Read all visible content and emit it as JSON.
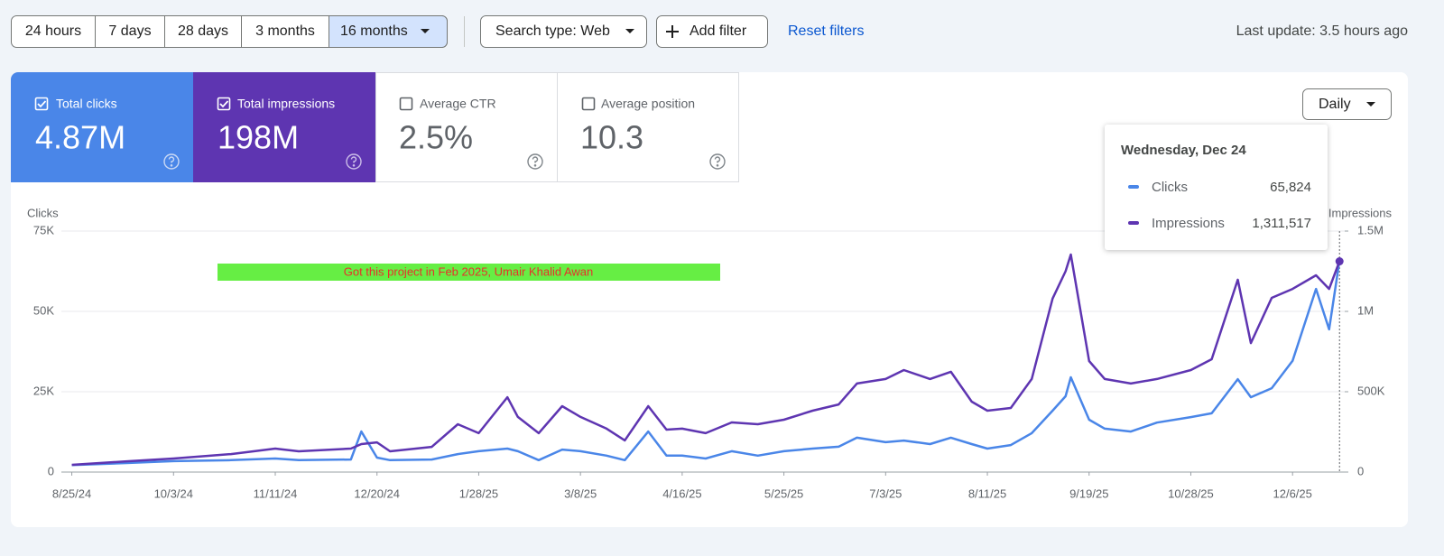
{
  "toolbar": {
    "ranges": [
      "24 hours",
      "7 days",
      "28 days",
      "3 months",
      "16 months"
    ],
    "search_type": "Search type: Web",
    "add_filter": "Add filter",
    "reset": "Reset filters",
    "last_update": "Last update: 3.5 hours ago"
  },
  "metrics": [
    {
      "label": "Total clicks",
      "value": "4.87M"
    },
    {
      "label": "Total impressions",
      "value": "198M"
    },
    {
      "label": "Average CTR",
      "value": "2.5%"
    },
    {
      "label": "Average position",
      "value": "10.3"
    }
  ],
  "granularity": "Daily",
  "tooltip": {
    "title": "Wednesday, Dec 24",
    "values": [
      "65,824",
      "1,311,517"
    ]
  },
  "chart_data": {
    "type": "line",
    "ylabel": "Clicks",
    "y2label": "Impressions",
    "annotation": "Got this project in Feb 2025, Umair Khalid Awan",
    "grid": true,
    "xlim": [
      "2024-08-21",
      "2025-12-26"
    ],
    "xticks": [
      {
        "value": "2024-08-25",
        "label": "8/25/24"
      },
      {
        "value": "2024-10-03",
        "label": "10/3/24"
      },
      {
        "value": "2024-11-11",
        "label": "11/11/24"
      },
      {
        "value": "2024-12-20",
        "label": "12/20/24"
      },
      {
        "value": "2025-01-28",
        "label": "1/28/25"
      },
      {
        "value": "2025-03-08",
        "label": "3/8/25"
      },
      {
        "value": "2025-04-16",
        "label": "4/16/25"
      },
      {
        "value": "2025-05-25",
        "label": "5/25/25"
      },
      {
        "value": "2025-07-03",
        "label": "7/3/25"
      },
      {
        "value": "2025-08-11",
        "label": "8/11/25"
      },
      {
        "value": "2025-09-19",
        "label": "9/19/25"
      },
      {
        "value": "2025-10-28",
        "label": "10/28/25"
      },
      {
        "value": "2025-12-06",
        "label": "12/6/25"
      }
    ],
    "ylim": [
      0,
      75000
    ],
    "yticks": [
      0,
      {
        "value": 25000,
        "label": "25K"
      },
      {
        "value": 50000,
        "label": "50K"
      },
      {
        "value": 75000,
        "label": "75K"
      }
    ],
    "y2lim": [
      0,
      1500000
    ],
    "y2ticks": [
      0,
      {
        "value": 500000,
        "label": "500K"
      },
      {
        "value": 1000000,
        "label": "1M"
      },
      {
        "value": 1500000,
        "label": "1.5M"
      }
    ],
    "x": [
      "2024-08-25",
      "2024-09-15",
      "2024-10-03",
      "2024-10-25",
      "2024-11-11",
      "2024-11-20",
      "2024-12-10",
      "2024-12-14",
      "2024-12-20",
      "2024-12-25",
      "2025-01-10",
      "2025-01-20",
      "2025-01-28",
      "2025-02-08",
      "2025-02-12",
      "2025-02-20",
      "2025-03-01",
      "2025-03-08",
      "2025-03-18",
      "2025-03-25",
      "2025-04-03",
      "2025-04-10",
      "2025-04-16",
      "2025-04-25",
      "2025-05-05",
      "2025-05-15",
      "2025-05-25",
      "2025-06-05",
      "2025-06-15",
      "2025-06-22",
      "2025-07-03",
      "2025-07-10",
      "2025-07-20",
      "2025-07-28",
      "2025-08-05",
      "2025-08-11",
      "2025-08-20",
      "2025-08-28",
      "2025-09-05",
      "2025-09-10",
      "2025-09-12",
      "2025-09-19",
      "2025-09-25",
      "2025-10-05",
      "2025-10-15",
      "2025-10-28",
      "2025-11-05",
      "2025-11-15",
      "2025-11-20",
      "2025-11-28",
      "2025-12-06",
      "2025-12-15",
      "2025-12-20",
      "2025-12-24"
    ],
    "series": [
      {
        "name": "Clicks",
        "color": "#4a86e8",
        "values": [
          2200,
          2800,
          3400,
          3700,
          4200,
          3700,
          3900,
          12600,
          4500,
          3700,
          3900,
          5600,
          6500,
          7300,
          6500,
          3700,
          7000,
          6500,
          5100,
          3700,
          12600,
          5100,
          5100,
          4200,
          6500,
          5100,
          6500,
          7300,
          7900,
          10700,
          9300,
          9800,
          8700,
          10700,
          8700,
          7300,
          8400,
          12100,
          19100,
          23600,
          29500,
          16300,
          13500,
          12600,
          15400,
          17100,
          18300,
          28900,
          23300,
          26100,
          34600,
          57000,
          44400,
          65824
        ]
      },
      {
        "name": "Impressions",
        "color": "#5e35b1",
        "axis": "y2",
        "values": [
          45000,
          67000,
          84000,
          112000,
          146000,
          129000,
          146000,
          174000,
          185000,
          129000,
          157000,
          298000,
          242000,
          466000,
          343000,
          242000,
          410000,
          343000,
          270000,
          197000,
          410000,
          264000,
          270000,
          242000,
          309000,
          298000,
          326000,
          382000,
          421000,
          551000,
          579000,
          635000,
          579000,
          624000,
          438000,
          382000,
          399000,
          579000,
          1080000,
          1250000,
          1354000,
          691000,
          579000,
          551000,
          579000,
          635000,
          702000,
          1197000,
          803000,
          1084000,
          1140000,
          1225000,
          1140000,
          1311517
        ]
      }
    ]
  }
}
